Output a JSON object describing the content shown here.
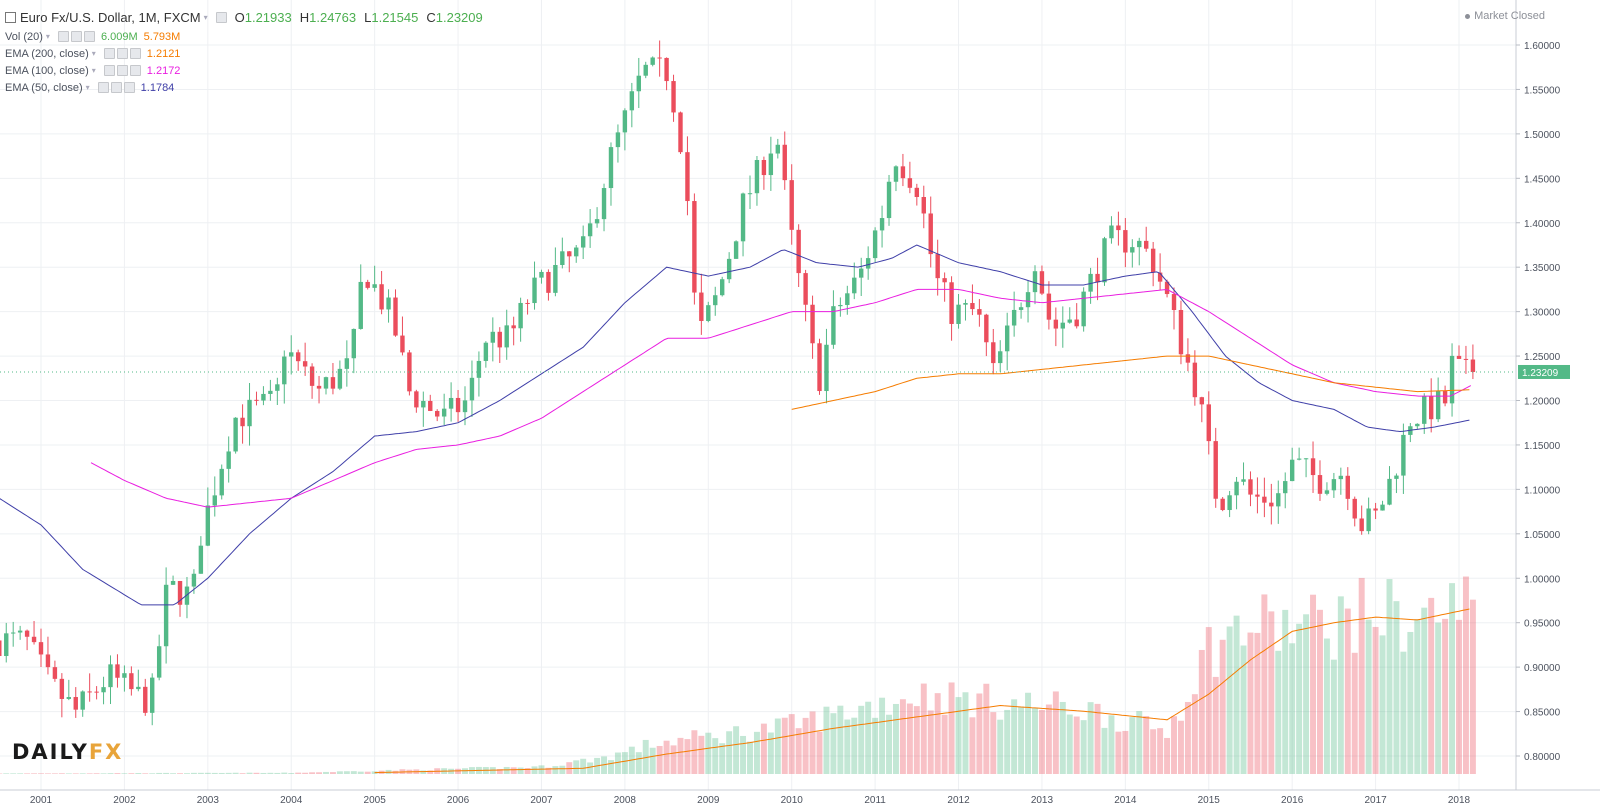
{
  "header": {
    "symbol": "Euro Fx/U.S. Dollar, 1M, FXCM",
    "open_label": "O",
    "open": "1.21933",
    "high_label": "H",
    "high": "1.24763",
    "low_label": "L",
    "low": "1.21545",
    "close_label": "C",
    "close": "1.23209",
    "market_status": "Market Closed"
  },
  "indicators": [
    {
      "label": "Vol (20)",
      "values": [
        "6.009M",
        "5.793M"
      ],
      "colors": [
        "#4caf50",
        "#f57c00"
      ]
    },
    {
      "label": "EMA (200, close)",
      "values": [
        "1.2121"
      ],
      "colors": [
        "#f57c00"
      ]
    },
    {
      "label": "EMA (100, close)",
      "values": [
        "1.2172"
      ],
      "colors": [
        "#e91ee0"
      ]
    },
    {
      "label": "EMA (50, close)",
      "values": [
        "1.1784"
      ],
      "colors": [
        "#3f3fa8"
      ]
    }
  ],
  "logo": {
    "part1": "DAILY",
    "part2": "FX"
  },
  "icons": [
    "collapse-icon",
    "settings-icon",
    "eye-icon",
    "close-icon",
    "caret-down-icon"
  ],
  "chart_data": {
    "type": "candlestick",
    "title": "Euro Fx/U.S. Dollar, 1M, FXCM",
    "x_range": [
      2000.5,
      2018.5
    ],
    "y_range": [
      0.775,
      1.625
    ],
    "y_ticks": [
      "1.60000",
      "1.55000",
      "1.50000",
      "1.45000",
      "1.40000",
      "1.35000",
      "1.30000",
      "1.25000",
      "1.20000",
      "1.15000",
      "1.10000",
      "1.05000",
      "1.00000",
      "0.95000",
      "0.90000",
      "0.85000",
      "0.80000"
    ],
    "x_ticks": [
      "2001",
      "2002",
      "2003",
      "2004",
      "2005",
      "2006",
      "2007",
      "2008",
      "2009",
      "2010",
      "2011",
      "2012",
      "2013",
      "2014",
      "2015",
      "2016",
      "2017",
      "2018"
    ],
    "last_price_label": "1.23209",
    "last_price": 1.23209,
    "ohlc_anchors": [
      [
        2000.9,
        0.93
      ],
      [
        2001.2,
        0.88
      ],
      [
        2001.5,
        0.85
      ],
      [
        2001.9,
        0.89
      ],
      [
        2002.2,
        0.87
      ],
      [
        2002.4,
        0.86
      ],
      [
        2002.6,
        0.99
      ],
      [
        2002.9,
        0.98
      ],
      [
        2003.0,
        1.05
      ],
      [
        2003.4,
        1.18
      ],
      [
        2003.9,
        1.2
      ],
      [
        2004.0,
        1.26
      ],
      [
        2004.4,
        1.21
      ],
      [
        2004.8,
        1.24
      ],
      [
        2004.95,
        1.35
      ],
      [
        2005.3,
        1.29
      ],
      [
        2005.5,
        1.21
      ],
      [
        2005.9,
        1.18
      ],
      [
        2006.2,
        1.2
      ],
      [
        2006.4,
        1.27
      ],
      [
        2006.7,
        1.27
      ],
      [
        2006.95,
        1.32
      ],
      [
        2007.3,
        1.35
      ],
      [
        2007.6,
        1.37
      ],
      [
        2007.9,
        1.47
      ],
      [
        2008.3,
        1.57
      ],
      [
        2008.6,
        1.57
      ],
      [
        2008.8,
        1.47
      ],
      [
        2008.95,
        1.27
      ],
      [
        2009.2,
        1.32
      ],
      [
        2009.5,
        1.42
      ],
      [
        2009.9,
        1.5
      ],
      [
        2010.1,
        1.37
      ],
      [
        2010.4,
        1.22
      ],
      [
        2010.6,
        1.3
      ],
      [
        2010.9,
        1.34
      ],
      [
        2011.2,
        1.42
      ],
      [
        2011.3,
        1.48
      ],
      [
        2011.6,
        1.44
      ],
      [
        2011.8,
        1.34
      ],
      [
        2012.0,
        1.3
      ],
      [
        2012.3,
        1.3
      ],
      [
        2012.5,
        1.23
      ],
      [
        2012.7,
        1.28
      ],
      [
        2013.0,
        1.36
      ],
      [
        2013.2,
        1.28
      ],
      [
        2013.5,
        1.3
      ],
      [
        2013.9,
        1.38
      ],
      [
        2014.2,
        1.38
      ],
      [
        2014.4,
        1.36
      ],
      [
        2014.6,
        1.31
      ],
      [
        2014.8,
        1.25
      ],
      [
        2014.95,
        1.21
      ],
      [
        2015.2,
        1.08
      ],
      [
        2015.4,
        1.12
      ],
      [
        2015.6,
        1.09
      ],
      [
        2015.9,
        1.09
      ],
      [
        2016.1,
        1.13
      ],
      [
        2016.4,
        1.11
      ],
      [
        2016.7,
        1.12
      ],
      [
        2016.9,
        1.06
      ],
      [
        2017.1,
        1.07
      ],
      [
        2017.3,
        1.12
      ],
      [
        2017.5,
        1.18
      ],
      [
        2017.7,
        1.19
      ],
      [
        2017.95,
        1.2
      ],
      [
        2018.0,
        1.24
      ],
      [
        2018.15,
        1.23
      ]
    ],
    "ema": [
      {
        "name": "EMA (50, close)",
        "value": 1.1784,
        "color": "#3f3fa8",
        "points": [
          [
            2000.5,
            1.09
          ],
          [
            2001.0,
            1.06
          ],
          [
            2001.5,
            1.01
          ],
          [
            2002.2,
            0.97
          ],
          [
            2002.6,
            0.97
          ],
          [
            2003.0,
            1.0
          ],
          [
            2003.5,
            1.05
          ],
          [
            2004.0,
            1.09
          ],
          [
            2004.5,
            1.12
          ],
          [
            2005.0,
            1.16
          ],
          [
            2005.5,
            1.165
          ],
          [
            2006.0,
            1.175
          ],
          [
            2006.5,
            1.2
          ],
          [
            2007.0,
            1.23
          ],
          [
            2007.5,
            1.26
          ],
          [
            2008.0,
            1.31
          ],
          [
            2008.5,
            1.35
          ],
          [
            2009.0,
            1.34
          ],
          [
            2009.5,
            1.35
          ],
          [
            2009.9,
            1.37
          ],
          [
            2010.3,
            1.355
          ],
          [
            2010.8,
            1.35
          ],
          [
            2011.2,
            1.36
          ],
          [
            2011.5,
            1.375
          ],
          [
            2012.0,
            1.355
          ],
          [
            2012.5,
            1.345
          ],
          [
            2013.0,
            1.33
          ],
          [
            2013.5,
            1.33
          ],
          [
            2014.0,
            1.34
          ],
          [
            2014.4,
            1.345
          ],
          [
            2014.8,
            1.3
          ],
          [
            2015.2,
            1.25
          ],
          [
            2015.6,
            1.22
          ],
          [
            2016.0,
            1.2
          ],
          [
            2016.5,
            1.19
          ],
          [
            2016.9,
            1.17
          ],
          [
            2017.3,
            1.165
          ],
          [
            2017.7,
            1.17
          ],
          [
            2018.15,
            1.1784
          ]
        ]
      },
      {
        "name": "EMA (100, close)",
        "value": 1.2172,
        "color": "#e91ee0",
        "points": [
          [
            2001.6,
            1.13
          ],
          [
            2002.0,
            1.11
          ],
          [
            2002.5,
            1.09
          ],
          [
            2003.0,
            1.08
          ],
          [
            2003.5,
            1.085
          ],
          [
            2004.0,
            1.09
          ],
          [
            2004.5,
            1.11
          ],
          [
            2005.0,
            1.13
          ],
          [
            2005.5,
            1.145
          ],
          [
            2006.0,
            1.15
          ],
          [
            2006.5,
            1.16
          ],
          [
            2007.0,
            1.18
          ],
          [
            2007.5,
            1.21
          ],
          [
            2008.0,
            1.24
          ],
          [
            2008.5,
            1.27
          ],
          [
            2009.0,
            1.27
          ],
          [
            2009.5,
            1.285
          ],
          [
            2010.0,
            1.3
          ],
          [
            2010.5,
            1.3
          ],
          [
            2011.0,
            1.31
          ],
          [
            2011.5,
            1.325
          ],
          [
            2012.0,
            1.325
          ],
          [
            2012.5,
            1.315
          ],
          [
            2013.0,
            1.31
          ],
          [
            2013.5,
            1.315
          ],
          [
            2014.0,
            1.32
          ],
          [
            2014.5,
            1.325
          ],
          [
            2015.0,
            1.3
          ],
          [
            2015.5,
            1.27
          ],
          [
            2016.0,
            1.24
          ],
          [
            2016.5,
            1.22
          ],
          [
            2017.0,
            1.21
          ],
          [
            2017.5,
            1.205
          ],
          [
            2017.9,
            1.205
          ],
          [
            2018.15,
            1.2172
          ]
        ]
      },
      {
        "name": "EMA (200, close)",
        "value": 1.2121,
        "color": "#f57c00",
        "points": [
          [
            2010.0,
            1.19
          ],
          [
            2010.5,
            1.2
          ],
          [
            2011.0,
            1.21
          ],
          [
            2011.5,
            1.225
          ],
          [
            2012.0,
            1.23
          ],
          [
            2012.5,
            1.23
          ],
          [
            2013.0,
            1.235
          ],
          [
            2013.5,
            1.24
          ],
          [
            2014.0,
            1.245
          ],
          [
            2014.5,
            1.25
          ],
          [
            2015.0,
            1.25
          ],
          [
            2015.5,
            1.24
          ],
          [
            2016.0,
            1.23
          ],
          [
            2016.5,
            1.22
          ],
          [
            2017.0,
            1.215
          ],
          [
            2017.5,
            1.21
          ],
          [
            2018.15,
            1.2121
          ]
        ]
      }
    ],
    "volume": {
      "label": "Vol (20)",
      "value": "6.009M",
      "ma_value": "5.793M",
      "max": 6.8,
      "anchors": [
        [
          2000.5,
          0.02
        ],
        [
          2004.0,
          0.04
        ],
        [
          2005.5,
          0.15
        ],
        [
          2007.0,
          0.25
        ],
        [
          2007.8,
          0.6
        ],
        [
          2008.4,
          1.1
        ],
        [
          2009.0,
          1.3
        ],
        [
          2010.0,
          1.7
        ],
        [
          2011.5,
          2.8
        ],
        [
          2012.5,
          2.5
        ],
        [
          2013.5,
          2.3
        ],
        [
          2014.5,
          1.5
        ],
        [
          2015.0,
          4.4
        ],
        [
          2015.5,
          5.2
        ],
        [
          2016.0,
          5.1
        ],
        [
          2016.5,
          5.3
        ],
        [
          2017.0,
          5.7
        ],
        [
          2017.5,
          5.4
        ],
        [
          2018.15,
          6.0
        ]
      ],
      "ma_anchors": [
        [
          2005.0,
          0.05
        ],
        [
          2007.5,
          0.2
        ],
        [
          2008.5,
          0.7
        ],
        [
          2009.5,
          1.1
        ],
        [
          2010.5,
          1.6
        ],
        [
          2011.5,
          2.0
        ],
        [
          2012.5,
          2.4
        ],
        [
          2013.5,
          2.2
        ],
        [
          2014.5,
          1.9
        ],
        [
          2015.0,
          2.8
        ],
        [
          2015.5,
          4.0
        ],
        [
          2016.0,
          5.0
        ],
        [
          2016.5,
          5.3
        ],
        [
          2017.0,
          5.5
        ],
        [
          2017.5,
          5.4
        ],
        [
          2018.15,
          5.8
        ]
      ]
    }
  }
}
